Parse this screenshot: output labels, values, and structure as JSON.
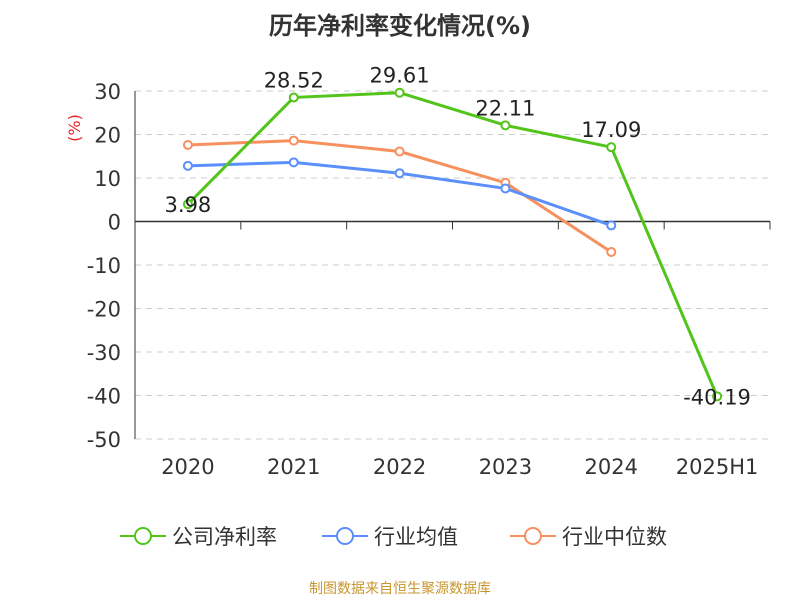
{
  "title": "历年净利率变化情况(%)",
  "source": "制图数据来自恒生聚源数据库",
  "colors": {
    "company": "#52c41a",
    "industry_avg": "#5b8ff9",
    "industry_median": "#f6905e",
    "grid": "#cccccc",
    "axis": "#333333",
    "unit": "#e8202a"
  },
  "chart_data": {
    "type": "line",
    "title": "历年净利率变化情况(%)",
    "ylabel": "(%)",
    "xlabel": "",
    "ylim": [
      -50,
      30
    ],
    "yticks": [
      30,
      20,
      10,
      0,
      -10,
      -20,
      -30,
      -40,
      -50
    ],
    "categories": [
      "2020",
      "2021",
      "2022",
      "2023",
      "2024",
      "2025H1"
    ],
    "grid": true,
    "legend_position": "bottom",
    "series": [
      {
        "name": "公司净利率",
        "values": [
          3.98,
          28.52,
          29.61,
          22.11,
          17.09,
          -40.19
        ],
        "labels": [
          "3.98",
          "28.52",
          "29.61",
          "22.11",
          "17.09",
          "-40.19"
        ]
      },
      {
        "name": "行业均值",
        "values": [
          12.8,
          13.6,
          11.1,
          7.6,
          -0.9,
          null
        ]
      },
      {
        "name": "行业中位数",
        "values": [
          17.6,
          18.6,
          16.1,
          8.9,
          -7.0,
          null
        ]
      }
    ]
  }
}
